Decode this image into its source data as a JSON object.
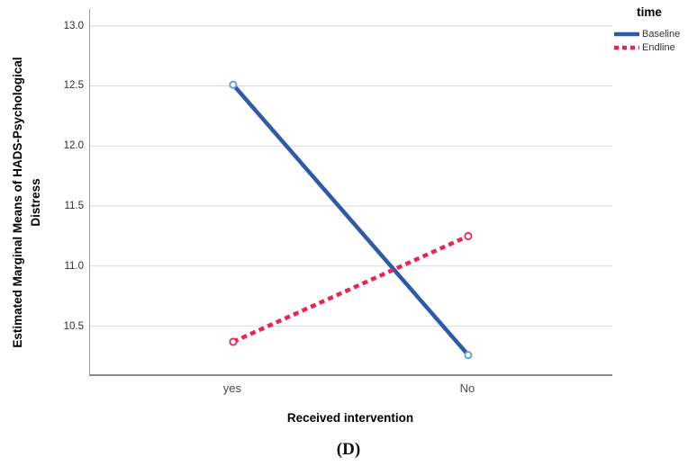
{
  "chart_data": {
    "type": "line",
    "title": "",
    "categories": [
      "yes",
      "No"
    ],
    "series": [
      {
        "name": "Baseline",
        "values": [
          12.51,
          10.26
        ],
        "line_style": "solid",
        "color": "#2D5BA9",
        "marker": "open-circle",
        "marker_color": "#55A0E0"
      },
      {
        "name": "Endline",
        "values": [
          10.37,
          11.25
        ],
        "line_style": "dotted",
        "color": "#EE2150",
        "marker": "open-circle",
        "marker_color": "#EE2150"
      }
    ],
    "xlabel": "Received intervention",
    "ylabel": "Estimated Marginal Means of HADS-Psychological Distress",
    "legend_title": "time",
    "y_ticks": [
      10.5,
      11.0,
      11.5,
      12.0,
      12.5,
      13.0
    ],
    "ylim": [
      10.1,
      13.14
    ],
    "grid": true,
    "legend_position": "top-right",
    "category_positions": [
      0.274,
      0.724
    ],
    "colors": {
      "grid": "#D9D9D9",
      "axis": "#8F8F8F",
      "tick_text": "#2E2E2E",
      "category_text": "#4A4A4A"
    }
  },
  "figure": {
    "caption": "(D)"
  }
}
